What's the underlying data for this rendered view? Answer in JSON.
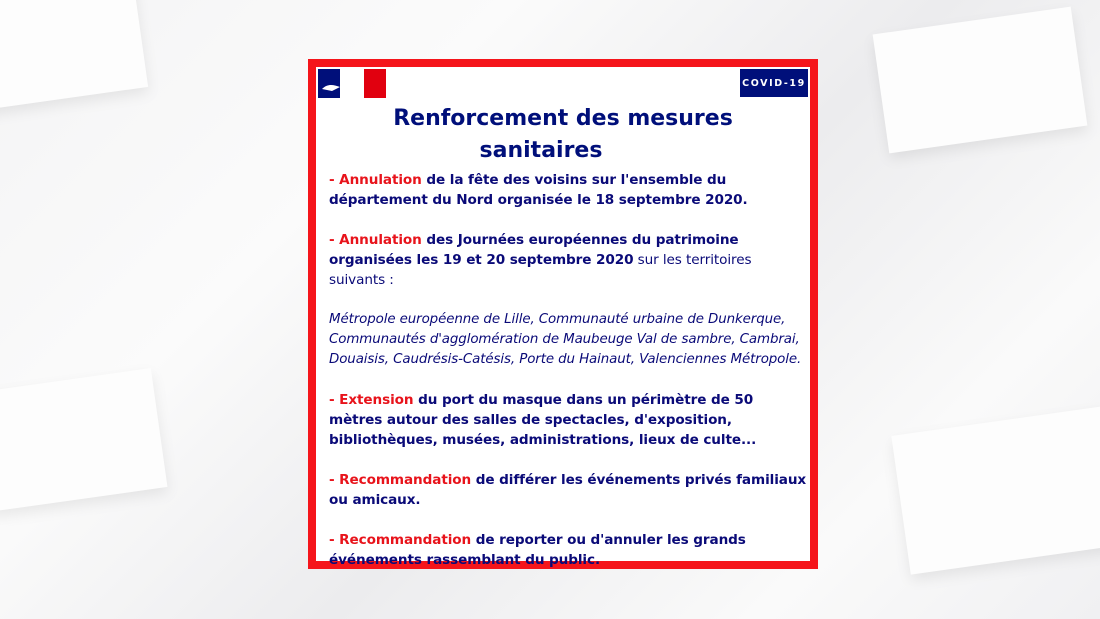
{
  "badge": "COVID-19",
  "logo": {
    "name": "marianne-logo",
    "colors": [
      "#000f7a",
      "#ffffff",
      "#e1000f"
    ]
  },
  "title": {
    "line1": "Renforcement des mesures",
    "line2": "sanitaires"
  },
  "colors": {
    "frame": "#f5151b",
    "navy": "#000f7a",
    "accent": "#e8131b"
  },
  "items": [
    {
      "lead": "- Annulation",
      "text": " de la fête des voisins sur l'ensemble du département du Nord organisée le 18 septembre 2020."
    },
    {
      "lead": "- Annulation",
      "text": " des Journées européennes du patrimoine organisées les 19 et 20 septembre 2020",
      "tail": " sur les territoires suivants :"
    },
    {
      "italic": "Métropole européenne de Lille, Communauté urbaine de Dunkerque, Communautés d'agglomération de Maubeuge Val de sambre, Cambrai, Douaisis, Caudrésis-Catésis, Porte du Hainaut, Valenciennes Métropole."
    },
    {
      "lead": "- Extension",
      "text": " du port du masque dans un périmètre de 50 mètres autour des salles de spectacles, d'exposition, bibliothèques, musées, administrations, lieux de culte..."
    },
    {
      "lead": "- Recommandation",
      "text": " de différer les événements privés familiaux ou amicaux."
    },
    {
      "lead": "- Recommandation",
      "text": " de reporter ou d'annuler les grands événements rassemblant du public."
    }
  ]
}
